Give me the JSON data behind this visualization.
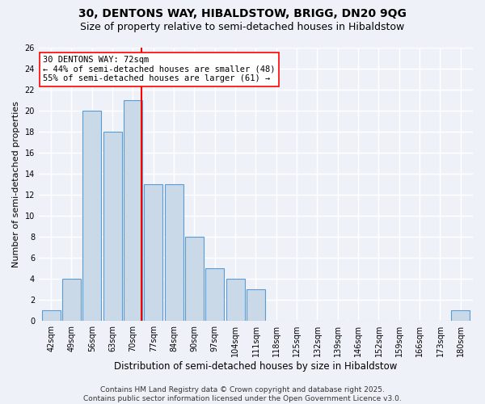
{
  "title1": "30, DENTONS WAY, HIBALDSTOW, BRIGG, DN20 9QG",
  "title2": "Size of property relative to semi-detached houses in Hibaldstow",
  "xlabel": "Distribution of semi-detached houses by size in Hibaldstow",
  "ylabel": "Number of semi-detached properties",
  "categories": [
    "42sqm",
    "49sqm",
    "56sqm",
    "63sqm",
    "70sqm",
    "77sqm",
    "84sqm",
    "90sqm",
    "97sqm",
    "104sqm",
    "111sqm",
    "118sqm",
    "125sqm",
    "132sqm",
    "139sqm",
    "146sqm",
    "152sqm",
    "159sqm",
    "166sqm",
    "173sqm",
    "180sqm"
  ],
  "values": [
    1,
    4,
    20,
    18,
    21,
    13,
    13,
    8,
    5,
    4,
    3,
    0,
    0,
    0,
    0,
    0,
    0,
    0,
    0,
    0,
    1
  ],
  "bar_color": "#c9d9e8",
  "bar_edge_color": "#5b9bd5",
  "annotation_text": "30 DENTONS WAY: 72sqm\n← 44% of semi-detached houses are smaller (48)\n55% of semi-detached houses are larger (61) →",
  "annotation_box_color": "white",
  "annotation_box_edge_color": "red",
  "vline_color": "red",
  "vline_x_index": 4.43,
  "background_color": "#eef2f8",
  "grid_color": "white",
  "ylim": [
    0,
    26
  ],
  "yticks": [
    0,
    2,
    4,
    6,
    8,
    10,
    12,
    14,
    16,
    18,
    20,
    22,
    24,
    26
  ],
  "footer": "Contains HM Land Registry data © Crown copyright and database right 2025.\nContains public sector information licensed under the Open Government Licence v3.0.",
  "title1_fontsize": 10,
  "title2_fontsize": 9,
  "ylabel_fontsize": 8,
  "xlabel_fontsize": 8.5,
  "tick_fontsize": 7,
  "footer_fontsize": 6.5,
  "annot_fontsize": 7.5
}
